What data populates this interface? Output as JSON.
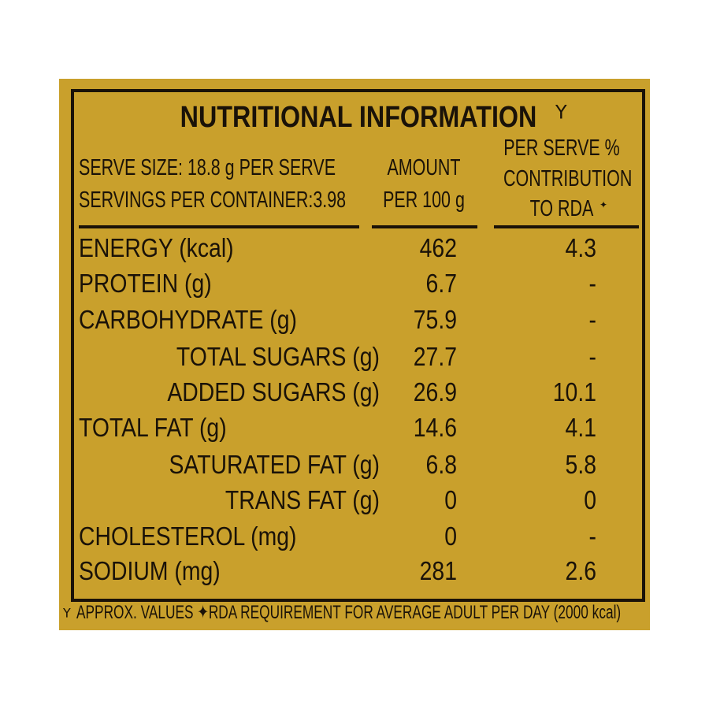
{
  "title": "NUTRITIONAL INFORMATION",
  "title_mark": "⅄",
  "serve_size": "SERVE SIZE: 18.8 g PER SERVE",
  "servings": "SERVINGS PER CONTAINER:3.98",
  "col_amount": [
    "AMOUNT",
    "PER 100 g"
  ],
  "col_rda": [
    "PER SERVE %",
    "CONTRIBUTION",
    "TO RDA"
  ],
  "rda_mark": "✦",
  "rows": [
    {
      "label": "ENERGY (kcal)",
      "amount": "462",
      "rda": "4.3",
      "indent": false
    },
    {
      "label": "PROTEIN (g)",
      "amount": "6.7",
      "rda": "-",
      "indent": false
    },
    {
      "label": "CARBOHYDRATE (g)",
      "amount": "75.9",
      "rda": "-",
      "indent": false
    },
    {
      "label": "TOTAL SUGARS (g)",
      "amount": "27.7",
      "rda": "-",
      "indent": true
    },
    {
      "label": "ADDED SUGARS (g)",
      "amount": "26.9",
      "rda": "10.1",
      "indent": true
    },
    {
      "label": "TOTAL FAT (g)",
      "amount": "14.6",
      "rda": "4.1",
      "indent": false
    },
    {
      "label": "SATURATED FAT (g)",
      "amount": "6.8",
      "rda": "5.8",
      "indent": true
    },
    {
      "label": "TRANS FAT (g)",
      "amount": "0",
      "rda": "0",
      "indent": true
    },
    {
      "label": "CHOLESTEROL (mg)",
      "amount": "0",
      "rda": "-",
      "indent": false
    },
    {
      "label": "SODIUM (mg)",
      "amount": "281",
      "rda": "2.6",
      "indent": false
    }
  ],
  "footnote": "APPROX. VALUES ✦RDA REQUIREMENT FOR AVERAGE ADULT PER DAY (2000 kcal)",
  "footnote_mark": "⅄",
  "colors": {
    "background": "#c9a02c",
    "ink": "#1a1208"
  }
}
